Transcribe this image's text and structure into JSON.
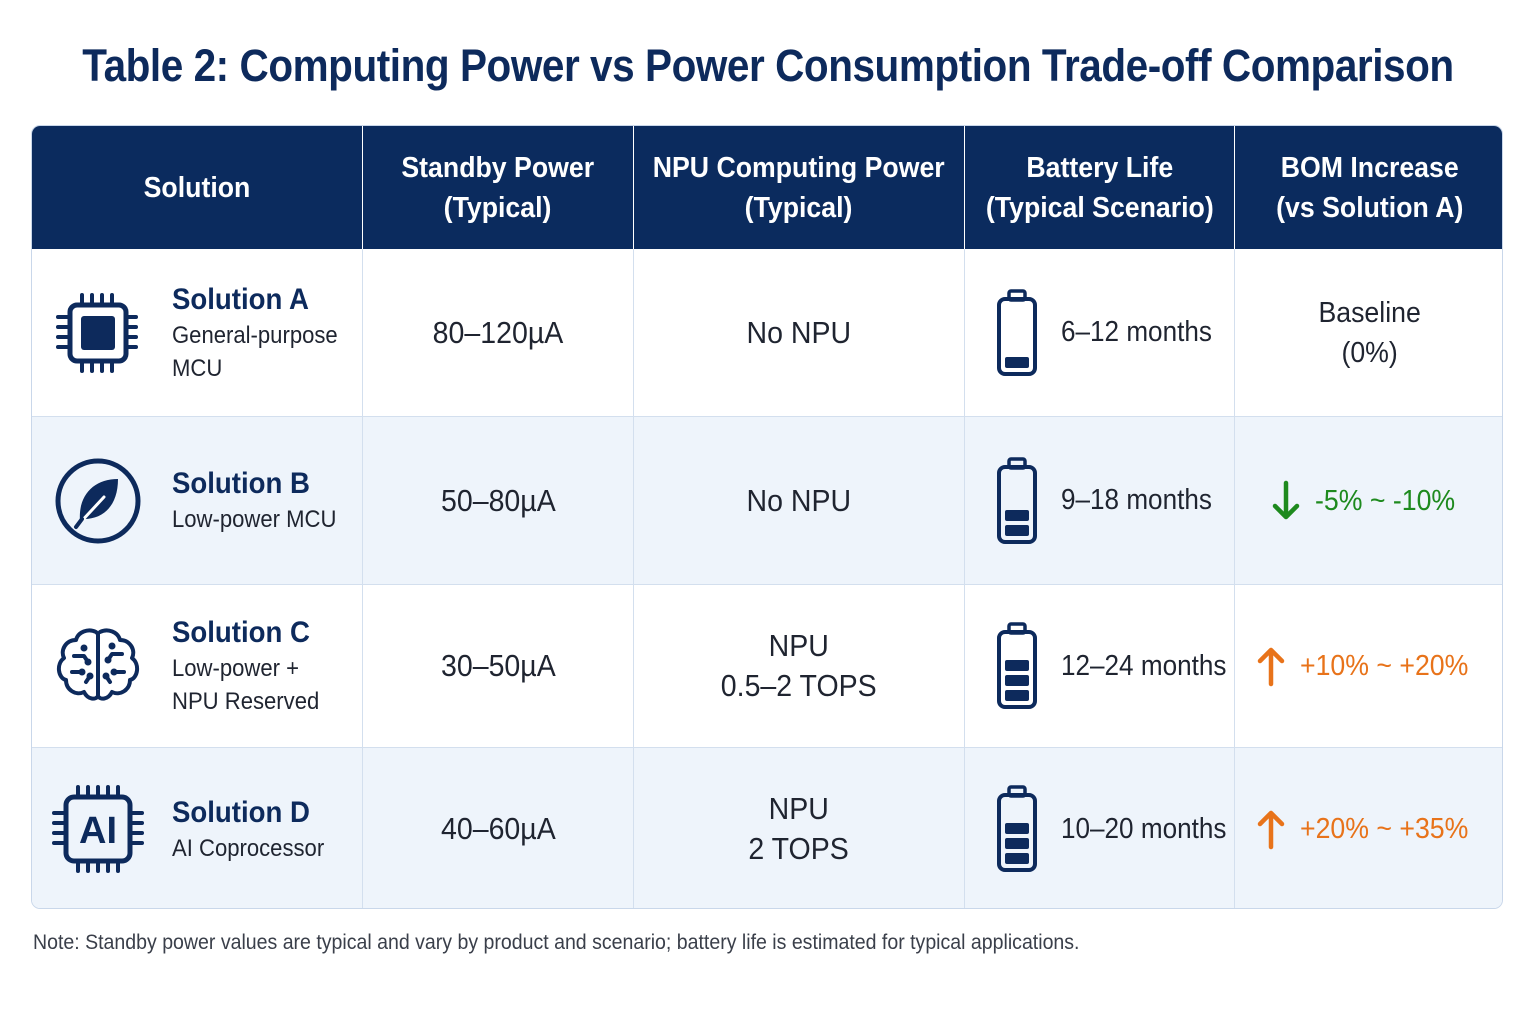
{
  "title": "Table 2: Computing Power vs Power Consumption Trade-off Comparison",
  "headers": [
    {
      "line1": "Solution",
      "line2": ""
    },
    {
      "line1": "Standby Power",
      "line2": "(Typical)"
    },
    {
      "line1": "NPU Computing Power",
      "line2": "(Typical)"
    },
    {
      "line1": "Battery Life",
      "line2": "(Typical Scenario)"
    },
    {
      "line1": "BOM Increase",
      "line2": "(vs Solution A)"
    }
  ],
  "rows": [
    {
      "name": "Solution A",
      "desc1": "General-purpose",
      "desc2": "MCU",
      "icon": "chip-icon",
      "standby": "80–120µA",
      "npu1": "No NPU",
      "npu2": "",
      "battery": "6–12 months",
      "battery_level": 0.25,
      "bom1": "Baseline",
      "bom2": "(0%)"
    },
    {
      "name": "Solution B",
      "desc1": "Low-power MCU",
      "desc2": "",
      "icon": "leaf-icon",
      "standby": "50–80µA",
      "npu1": "No NPU",
      "npu2": "",
      "battery": "9–18 months",
      "battery_level": 0.4,
      "bom": "-5% ~ -10%",
      "bom_direction": "down",
      "bom_color": "#1e8a1e"
    },
    {
      "name": "Solution C",
      "desc1": "Low-power +",
      "desc2": "NPU Reserved",
      "icon": "brain-circuit-icon",
      "standby": "30–50µA",
      "npu1": "NPU",
      "npu2": "0.5–2 TOPS",
      "battery": "12–24 months",
      "battery_level": 0.75,
      "bom": "+10% ~ +20%",
      "bom_direction": "up",
      "bom_color": "#e8731a"
    },
    {
      "name": "Solution D",
      "desc1": "AI Coprocessor",
      "desc2": "",
      "icon": "ai-chip-icon",
      "standby": "40–60µA",
      "npu1": "NPU",
      "npu2": "2 TOPS",
      "battery": "10–20 months",
      "battery_level": 0.75,
      "bom": "+20% ~ +35%",
      "bom_direction": "up",
      "bom_color": "#e8731a"
    }
  ],
  "note": "Note:  Standby power values are typical and vary by product and scenario; battery life is estimated for typical applications.",
  "colors": {
    "header_bg": "#0b2b5e",
    "accent": "#0d2a5c",
    "alt_row": "#eef4fb",
    "down": "#1e8a1e",
    "up": "#e8731a"
  }
}
